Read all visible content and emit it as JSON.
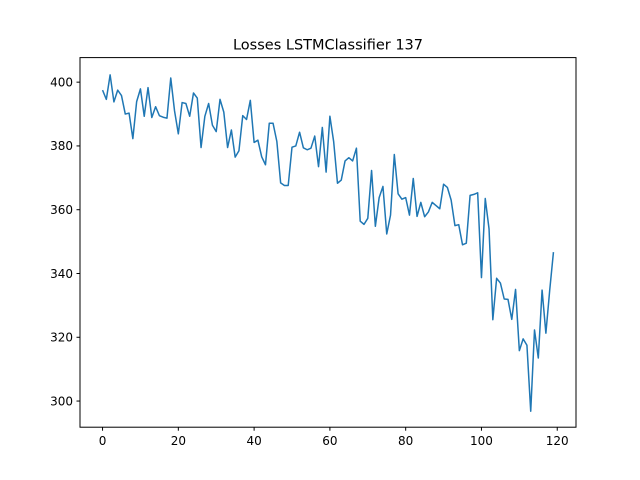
{
  "chart_data": {
    "type": "line",
    "title": "Losses LSTMClassifier 137",
    "xlabel": "",
    "ylabel": "",
    "xlim": [
      -5.95,
      124.95
    ],
    "ylim": [
      291.8,
      407.7
    ],
    "grid": false,
    "line_color": "#1f77b4",
    "x_ticks": [
      0,
      20,
      40,
      60,
      80,
      100,
      120
    ],
    "y_ticks": [
      300,
      320,
      340,
      360,
      380,
      400
    ],
    "x_tick_labels": [
      "0",
      "20",
      "40",
      "60",
      "80",
      "100",
      "120"
    ],
    "y_tick_labels": [
      "300",
      "320",
      "340",
      "360",
      "380",
      "400"
    ],
    "series": [
      {
        "values": [
          397.5,
          394.6,
          402.3,
          393.8,
          397.5,
          395.8,
          390.0,
          390.3,
          382.3,
          393.9,
          397.9,
          389.3,
          398.3,
          388.9,
          392.3,
          389.5,
          389.0,
          388.7,
          401.3,
          391.0,
          383.8,
          393.6,
          393.3,
          389.3,
          396.6,
          395.0,
          379.5,
          389.3,
          393.3,
          386.5,
          384.5,
          394.6,
          390.6,
          379.5,
          385.0,
          376.5,
          378.5,
          389.5,
          388.3,
          394.3,
          381.1,
          381.8,
          376.6,
          374.1,
          387.1,
          387.1,
          381.4,
          368.4,
          367.6,
          367.6,
          379.6,
          380.0,
          384.3,
          379.4,
          378.8,
          379.3,
          383.1,
          373.5,
          385.8,
          371.8,
          389.3,
          381.3,
          368.3,
          369.3,
          375.3,
          376.3,
          375.3,
          379.3,
          356.4,
          355.4,
          357.3,
          372.3,
          354.8,
          363.8,
          367.3,
          352.4,
          358.3,
          377.3,
          365.0,
          363.3,
          363.8,
          358.3,
          369.8,
          357.9,
          362.3,
          357.8,
          359.3,
          362.3,
          361.3,
          360.3,
          368.0,
          367.0,
          363.0,
          355.0,
          355.3,
          349.0,
          349.5,
          364.5,
          364.8,
          365.3,
          338.7,
          363.5,
          354.0,
          325.5,
          338.5,
          337.0,
          332.0,
          331.9,
          325.6,
          335.0,
          315.8,
          319.5,
          317.5,
          296.8,
          322.3,
          313.5,
          334.8,
          321.3,
          334.6,
          346.7
        ]
      }
    ]
  }
}
